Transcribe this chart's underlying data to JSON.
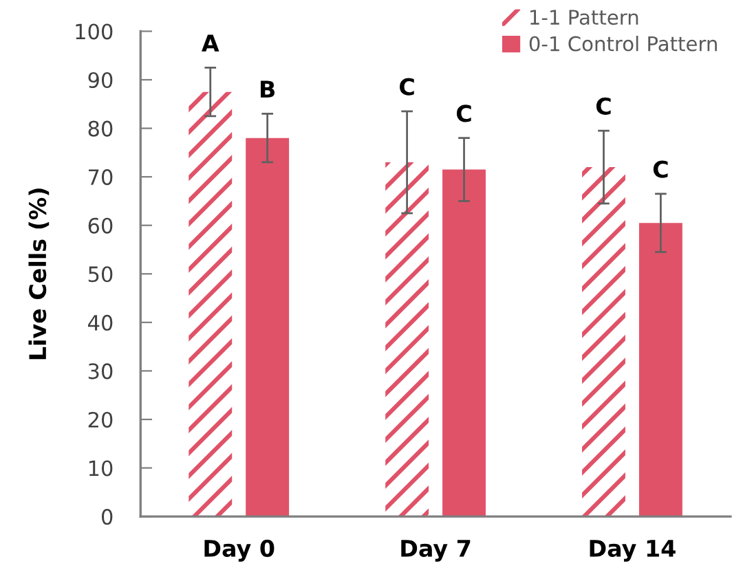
{
  "chart_data": {
    "type": "bar",
    "ylabel": "Live Cells (%)",
    "categories": [
      "Day 0",
      "Day 7",
      "Day 14"
    ],
    "series": [
      {
        "name": "1-1 Pattern",
        "color": "#e05268",
        "values": [
          87.5,
          73,
          72
        ],
        "errors": [
          5,
          10.5,
          7.5
        ]
      },
      {
        "name": "0-1 Control Pattern",
        "color": "#e05268",
        "values": [
          78,
          71.5,
          60.5
        ],
        "errors": [
          5,
          6.5,
          6
        ]
      }
    ],
    "ylim": [
      0,
      100
    ],
    "yticks": [
      0,
      10,
      20,
      30,
      40,
      50,
      60,
      70,
      80,
      90,
      100
    ],
    "legend": "top right",
    "annotations": [
      "A",
      "B",
      "C",
      "C",
      "C",
      "C"
    ]
  }
}
